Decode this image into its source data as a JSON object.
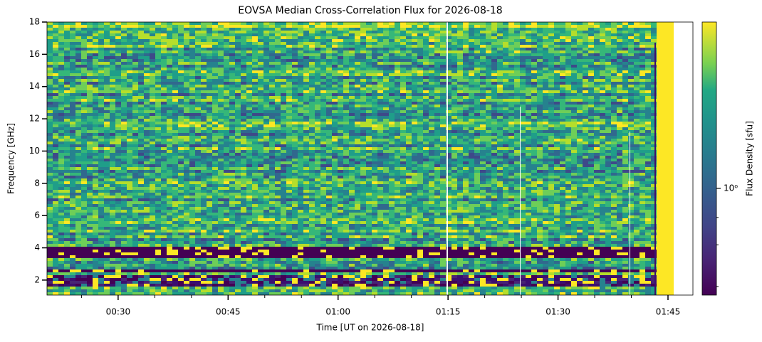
{
  "chart_data": {
    "type": "spectrogram",
    "title": "EOVSA Median Cross-Correlation Flux for 2026-08-18",
    "x_label": "Time [UT on 2026-08-18]",
    "y_label": "Frequency [GHz]",
    "xlim": [
      20.3,
      108.4
    ],
    "xticks": [
      {
        "value": 30,
        "label": "00:30"
      },
      {
        "value": 45,
        "label": "00:45"
      },
      {
        "value": 60,
        "label": "01:00"
      },
      {
        "value": 75,
        "label": "01:15"
      },
      {
        "value": 90,
        "label": "01:30"
      },
      {
        "value": 105,
        "label": "01:45"
      }
    ],
    "xminorticks": [
      25,
      35,
      40,
      50,
      55,
      65,
      70,
      80,
      85,
      95,
      100
    ],
    "ylim": [
      1.07,
      18
    ],
    "yticks": [
      2,
      4,
      6,
      8,
      10,
      12,
      14,
      16,
      18
    ],
    "colormap": "viridis",
    "colorbar": {
      "label": "Flux Density [sfu]",
      "log": true,
      "lim": [
        0.27,
        7.7
      ],
      "ticks": [
        {
          "value": 1,
          "label": "10⁰"
        }
      ],
      "minorticks": [
        0.3,
        0.5,
        0.7
      ]
    }
  }
}
